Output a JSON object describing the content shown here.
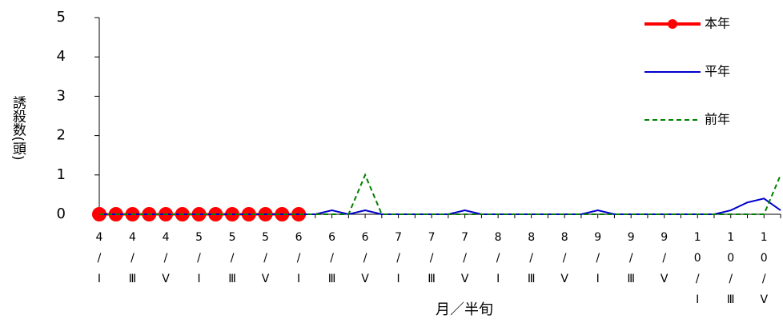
{
  "chart_data": {
    "type": "line",
    "y_label": "誘殺数(頭)",
    "x_label": "月／半旬",
    "categories": [
      "4/Ⅰ",
      null,
      "4/Ⅲ",
      null,
      "4/Ⅴ",
      null,
      "5/Ⅰ",
      null,
      "5/Ⅲ",
      null,
      "5/Ⅴ",
      null,
      "6/Ⅰ",
      null,
      "6/Ⅲ",
      null,
      "6/Ⅴ",
      null,
      "7/Ⅰ",
      null,
      "7/Ⅲ",
      null,
      "7/Ⅴ",
      null,
      "8/Ⅰ",
      null,
      "8/Ⅲ",
      null,
      "8/Ⅴ",
      null,
      "9/Ⅰ",
      null,
      "9/Ⅲ",
      null,
      "9/Ⅴ",
      null,
      "10/Ⅰ",
      null,
      "10/Ⅲ",
      null,
      "10/Ⅴ",
      null
    ],
    "series": [
      {
        "name": "本年",
        "color": "#ff0000",
        "markers": true,
        "dash": "solid",
        "values": [
          0,
          0,
          0,
          0,
          0,
          0,
          0,
          0,
          0,
          0,
          0,
          0,
          0,
          null,
          null,
          null,
          null,
          null,
          null,
          null,
          null,
          null,
          null,
          null,
          null,
          null,
          null,
          null,
          null,
          null,
          null,
          null,
          null,
          null,
          null,
          null,
          null,
          null,
          null,
          null,
          null,
          null
        ]
      },
      {
        "name": "平年",
        "color": "#0000cc",
        "markers": false,
        "dash": "solid",
        "values": [
          0,
          0,
          0,
          0,
          0,
          0,
          0,
          0,
          0,
          0,
          0,
          0,
          0,
          0,
          0.1,
          0,
          0.1,
          0,
          0,
          0,
          0,
          0,
          0.1,
          0,
          0,
          0,
          0,
          0,
          0,
          0,
          0.1,
          0,
          0,
          0,
          0,
          0,
          0,
          0,
          0.1,
          0.3,
          0.4,
          0.1
        ]
      },
      {
        "name": "前年",
        "color": "#008000",
        "markers": false,
        "dash": "dashed",
        "values": [
          0,
          0,
          0,
          0,
          0,
          0,
          0,
          0,
          0,
          0,
          0,
          0,
          0,
          0,
          0,
          0,
          1,
          0,
          0,
          0,
          0,
          0,
          0,
          0,
          0,
          0,
          0,
          0,
          0,
          0,
          0,
          0,
          0,
          0,
          0,
          0,
          0,
          0,
          0,
          0,
          0,
          1
        ]
      }
    ],
    "ylim": [
      0,
      5
    ],
    "yticks": [
      0,
      1,
      2,
      3,
      4,
      5
    ],
    "grid": false,
    "legend": "upper right"
  }
}
